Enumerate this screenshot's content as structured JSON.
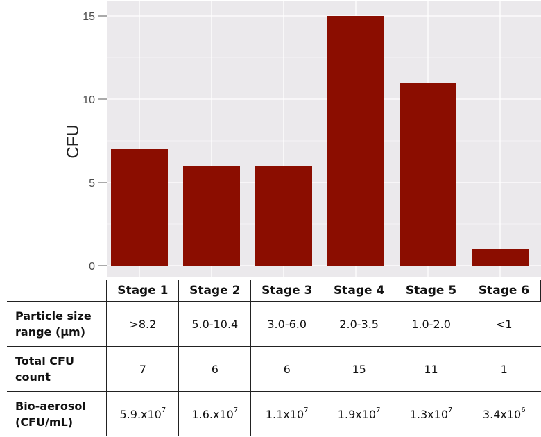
{
  "chart_data": {
    "type": "bar",
    "categories": [
      "Stage 1",
      "Stage 2",
      "Stage 3",
      "Stage 4",
      "Stage 5",
      "Stage 6"
    ],
    "values": [
      7,
      6,
      6,
      15,
      11,
      1
    ],
    "title": "",
    "xlabel": "",
    "ylabel": "CFU",
    "ylim": [
      0,
      15
    ],
    "yticks": [
      "0",
      "5",
      "10",
      "15"
    ],
    "grid": true,
    "bar_color": "#8b0d00",
    "panel_color": "#ebe9ec",
    "grid_color": "#ffffff"
  },
  "table": {
    "headers": [
      "Stage 1",
      "Stage 2",
      "Stage 3",
      "Stage 4",
      "Stage 5",
      "Stage 6"
    ],
    "rows": [
      {
        "label_line1": "Particle size",
        "label_line2": "range (µm)",
        "cells": [
          {
            "base": ">8.2",
            "exp": ""
          },
          {
            "base": "5.0-10.4",
            "exp": ""
          },
          {
            "base": "3.0-6.0",
            "exp": ""
          },
          {
            "base": "2.0-3.5",
            "exp": ""
          },
          {
            "base": "1.0-2.0",
            "exp": ""
          },
          {
            "base": "<1",
            "exp": ""
          }
        ]
      },
      {
        "label_line1": "Total CFU",
        "label_line2": "count",
        "cells": [
          {
            "base": "7",
            "exp": ""
          },
          {
            "base": "6",
            "exp": ""
          },
          {
            "base": "6",
            "exp": ""
          },
          {
            "base": "15",
            "exp": ""
          },
          {
            "base": "11",
            "exp": ""
          },
          {
            "base": "1",
            "exp": ""
          }
        ]
      },
      {
        "label_line1": "Bio-aerosol",
        "label_line2": "(CFU/mL)",
        "cells": [
          {
            "base": "5.9.x10",
            "exp": "7"
          },
          {
            "base": "1.6.x10",
            "exp": "7"
          },
          {
            "base": "1.1x10",
            "exp": "7"
          },
          {
            "base": "1.9x10",
            "exp": "7"
          },
          {
            "base": "1.3x10",
            "exp": "7"
          },
          {
            "base": "3.4x10",
            "exp": "6"
          }
        ]
      }
    ]
  }
}
